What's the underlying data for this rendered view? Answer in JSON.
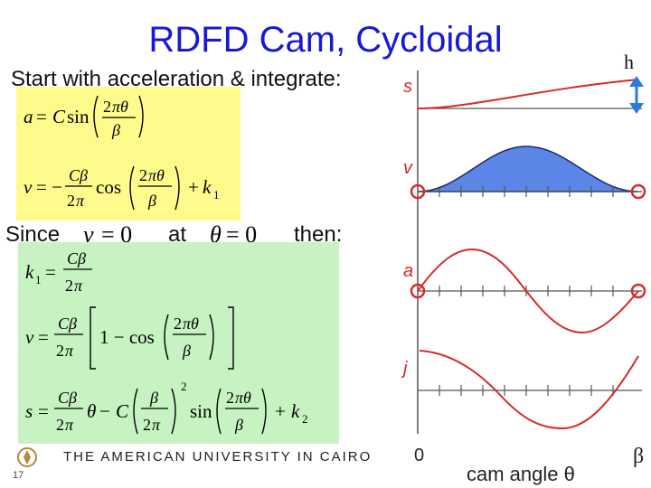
{
  "slide": {
    "title": "RDFD Cam, Cycloidal",
    "subtitle": "Start with acceleration & integrate:",
    "since_label": "Since",
    "at_label": "at",
    "then_label": "then:",
    "slide_number": "17",
    "footer": "THE AMERICAN UNIVERSITY IN CAIRO"
  },
  "equations": {
    "a": "a = C sin(2πθ / β)",
    "v": "v = −(Cβ / 2π) cos(2πθ / β) + k₁",
    "v_condition": "v = 0",
    "theta_condition": "θ = 0",
    "k1": "k₁ = Cβ / 2π",
    "v_final": "v = (Cβ / 2π)[1 − cos(2πθ / β)]",
    "s_final": "s = (Cβ / 2π)θ − C(β / 2π)² sin(2πθ / β) + k₂"
  },
  "plots": {
    "labels": [
      "s",
      "v",
      "a",
      "j"
    ],
    "x_label": "cam angle θ",
    "x_start": "0",
    "x_end": "β",
    "rise_label": "h",
    "curve_color": "#d42a2a",
    "fill_color": "#5b86e6"
  }
}
